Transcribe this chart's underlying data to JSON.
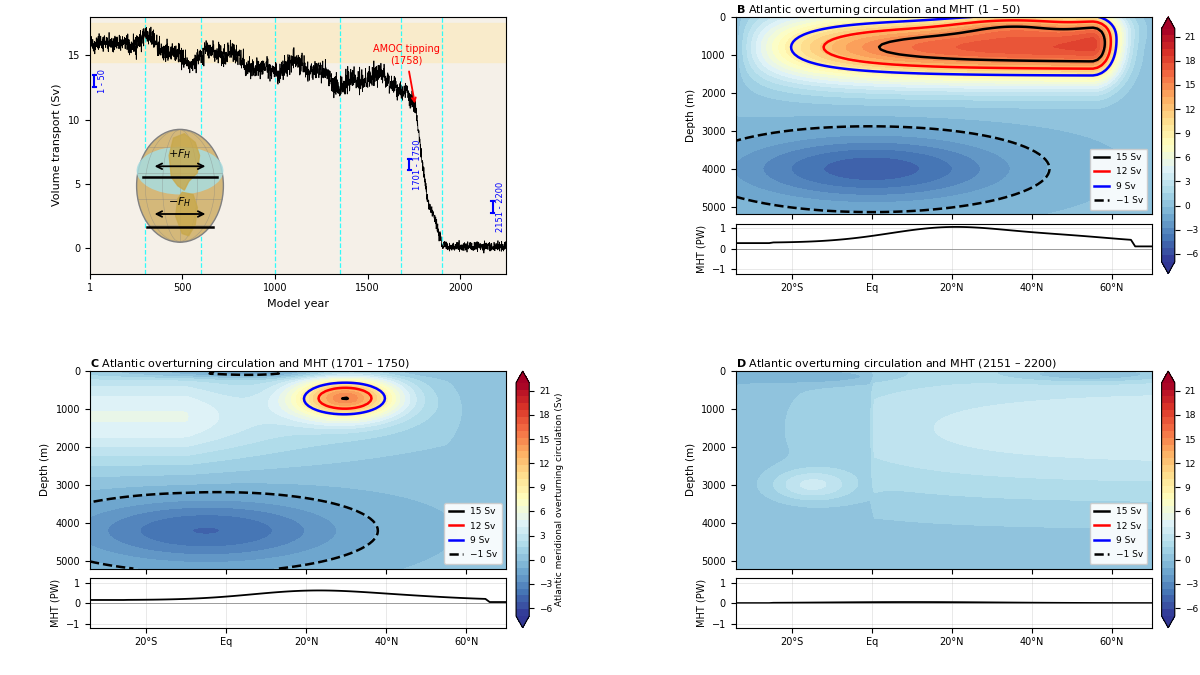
{
  "panel_A": {
    "xlabel": "Model year",
    "ylabel": "Volume transport (Sv)",
    "ylim": [
      -2,
      18
    ],
    "xlim": [
      1,
      2250
    ],
    "xticks": [
      1,
      500,
      1000,
      1500,
      2000
    ],
    "yticks": [
      0,
      5,
      10,
      15
    ],
    "yellow_shading": [
      14.5,
      17.5
    ],
    "tipping_year": 1758,
    "tipping_label": "AMOC tipping\n(1758)",
    "cyan_vlines": [
      300,
      600,
      1000,
      1350,
      1680,
      1900
    ],
    "background_color": "#f5f0e8"
  },
  "panel_B_title": "Atlantic overturning circulation and MHT (1 – 50)",
  "panel_C_title": "Atlantic overturning circulation and MHT (1701 – 1750)",
  "panel_D_title": "Atlantic overturning circulation and MHT (2151 – 2200)",
  "streamfunction_panels": {
    "depth_yticks": [
      0,
      1000,
      2000,
      3000,
      4000,
      5000
    ],
    "lat_tick_vals": [
      -20,
      0,
      20,
      40,
      60
    ],
    "lat_tick_lbls": [
      "20°S",
      "Eq",
      "20°N",
      "40°N",
      "60°N"
    ],
    "lat_range": [
      -34,
      70
    ],
    "depth_range": [
      0,
      5200
    ],
    "colorbar_ticks": [
      -6,
      -3,
      0,
      3,
      6,
      9,
      12,
      15,
      18,
      21
    ],
    "colorbar_label": "Atlantic meridional overturning circulation (Sv)",
    "cmap": "RdYlBu_r",
    "vmin": -7,
    "vmax": 22
  },
  "mht_ylabel": "MHT (PW)",
  "mht_ylim": [
    -1.2,
    1.2
  ],
  "mht_yticks": [
    -1,
    0,
    1
  ]
}
